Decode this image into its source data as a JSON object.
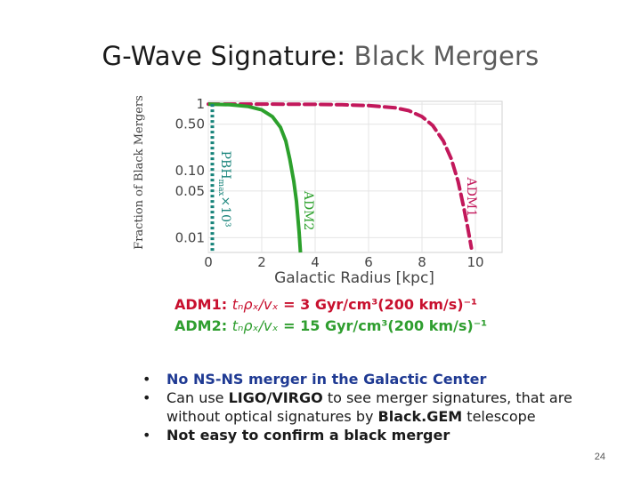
{
  "slide": {
    "title_part1": "G-Wave Signature: ",
    "title_part2": "Black Mergers",
    "page_number": "24"
  },
  "chart_data": {
    "type": "line",
    "xlabel": "Galactic Radius  [kpc]",
    "ylabel": "Fraction of Black Mergers",
    "xlim": [
      0,
      11
    ],
    "ylim": [
      0.006,
      1.1
    ],
    "yscale": "log",
    "x_ticks": [
      0,
      2,
      4,
      6,
      8,
      10
    ],
    "x_tick_labels": [
      "0",
      "2",
      "4",
      "6",
      "8",
      "10"
    ],
    "y_ticks": [
      1,
      0.5,
      0.1,
      0.05,
      0.01
    ],
    "y_tick_labels": [
      "1",
      "0.50",
      "0.10",
      "0.05",
      "0.01"
    ],
    "grid": true,
    "series": [
      {
        "name": "ADM1",
        "color": "#c2185b",
        "style": "dashed",
        "x": [
          0.0,
          2.0,
          4.0,
          5.0,
          6.0,
          7.0,
          7.5,
          8.0,
          8.4,
          8.8,
          9.1,
          9.35,
          9.55,
          9.7,
          9.85
        ],
        "y": [
          1.0,
          0.999,
          0.99,
          0.98,
          0.95,
          0.88,
          0.8,
          0.65,
          0.48,
          0.28,
          0.15,
          0.07,
          0.03,
          0.015,
          0.007
        ]
      },
      {
        "name": "ADM2",
        "color": "#2ca02c",
        "style": "solid",
        "x": [
          0.0,
          0.8,
          1.5,
          2.0,
          2.4,
          2.7,
          2.9,
          3.05,
          3.2,
          3.3,
          3.4,
          3.45
        ],
        "y": [
          1.0,
          0.98,
          0.92,
          0.82,
          0.65,
          0.45,
          0.28,
          0.15,
          0.07,
          0.035,
          0.012,
          0.006
        ]
      },
      {
        "name": "PBH_max×10³",
        "color": "#17837a",
        "style": "dotted",
        "x": [
          0.15,
          0.15
        ],
        "y": [
          1.0,
          0.006
        ]
      }
    ],
    "annotations": [
      {
        "text": "ADM1",
        "x": 9.7,
        "y": 0.08
      },
      {
        "text": "ADM2",
        "x": 3.6,
        "y": 0.05
      },
      {
        "text": "PBH",
        "sub": "max",
        "suffix": "×10³",
        "x": 0.5,
        "y": 0.2
      }
    ]
  },
  "formulas": [
    {
      "key": "ADM1:",
      "lhs": "tₙρₓ/vₓ",
      "rest": "=  3  Gyr/cm³(200 km/s)⁻¹"
    },
    {
      "key": "ADM2:",
      "lhs": "tₙρₓ/vₓ",
      "rest": "= 15 Gyr/cm³(200 km/s)⁻¹"
    }
  ],
  "bullets": [
    {
      "text": "No NS-NS merger in the Galactic Center"
    },
    {
      "pre": "Can use ",
      "bold1": "LIGO/VIRGO",
      "mid": " to see merger signatures, that are without optical signatures by ",
      "bold2": "Black.GEM",
      "post": " telescope"
    },
    {
      "text": "Not easy to confirm a black merger"
    }
  ],
  "bullet_symbol": "•"
}
